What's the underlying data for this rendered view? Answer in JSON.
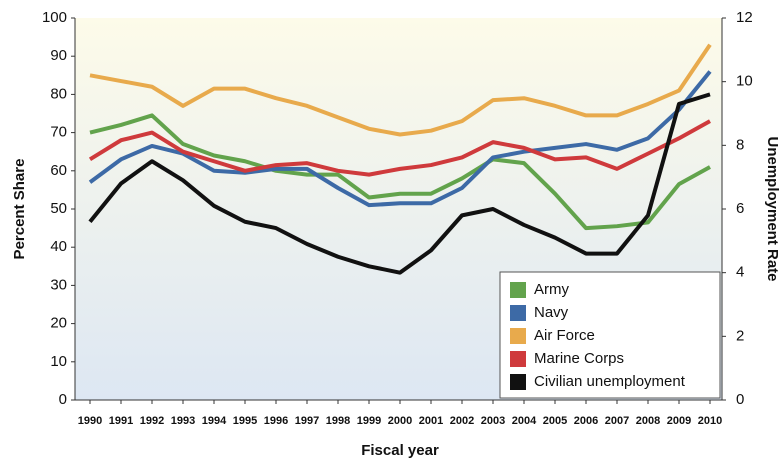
{
  "chart_data": {
    "type": "line",
    "ylabel": "Percent Share",
    "y2label": "Unemployment Rate",
    "xlabel": "Fiscal year",
    "categories": [
      "1990",
      "1991",
      "1992",
      "1993",
      "1994",
      "1995",
      "1996",
      "1997",
      "1998",
      "1999",
      "2000",
      "2001",
      "2002",
      "2003",
      "2004",
      "2005",
      "2006",
      "2007",
      "2008",
      "2009",
      "2010"
    ],
    "series": [
      {
        "name": "Army",
        "color": "#62a34c",
        "values": [
          70,
          72,
          74.5,
          67,
          64,
          62.5,
          60,
          59,
          59,
          53,
          54,
          54,
          58,
          63,
          62,
          54,
          45,
          45.5,
          46.5,
          56.5,
          61
        ]
      },
      {
        "name": "Navy",
        "color": "#3d6aa6",
        "values": [
          57,
          63,
          66.5,
          64.5,
          60,
          59.5,
          60.5,
          60.5,
          55.5,
          51,
          51.5,
          51.5,
          55.5,
          63.5,
          65,
          66,
          67,
          65.5,
          68.5,
          76,
          86
        ]
      },
      {
        "name": "Air Force",
        "color": "#e8aa4c",
        "values": [
          85,
          83.5,
          82,
          77,
          81.5,
          81.5,
          79,
          77,
          74,
          71,
          69.5,
          70.5,
          73,
          78.5,
          79,
          77,
          74.5,
          74.5,
          77.5,
          81,
          93
        ]
      },
      {
        "name": "Marine Corps",
        "color": "#cf3a3c",
        "values": [
          63,
          68,
          70,
          65,
          62.5,
          60,
          61.5,
          62,
          60,
          59,
          60.5,
          61.5,
          63.5,
          67.5,
          66,
          63,
          63.5,
          60.5,
          64.5,
          68.5,
          73
        ]
      },
      {
        "name": "Civilian unemployment",
        "color": "#111111",
        "axis": "y2",
        "values": [
          5.6,
          6.8,
          7.5,
          6.9,
          6.1,
          5.6,
          5.4,
          4.9,
          4.5,
          4.2,
          4.0,
          4.7,
          5.8,
          6.0,
          5.5,
          5.1,
          4.6,
          4.6,
          5.8,
          9.3,
          9.6
        ]
      }
    ],
    "ylim": [
      0,
      100
    ],
    "yticks": [
      0,
      10,
      20,
      30,
      40,
      50,
      60,
      70,
      80,
      90,
      100
    ],
    "y2lim": [
      0,
      12
    ],
    "y2ticks": [
      0,
      2,
      4,
      6,
      8,
      10,
      12
    ],
    "legend": "lower right",
    "grid": false
  }
}
